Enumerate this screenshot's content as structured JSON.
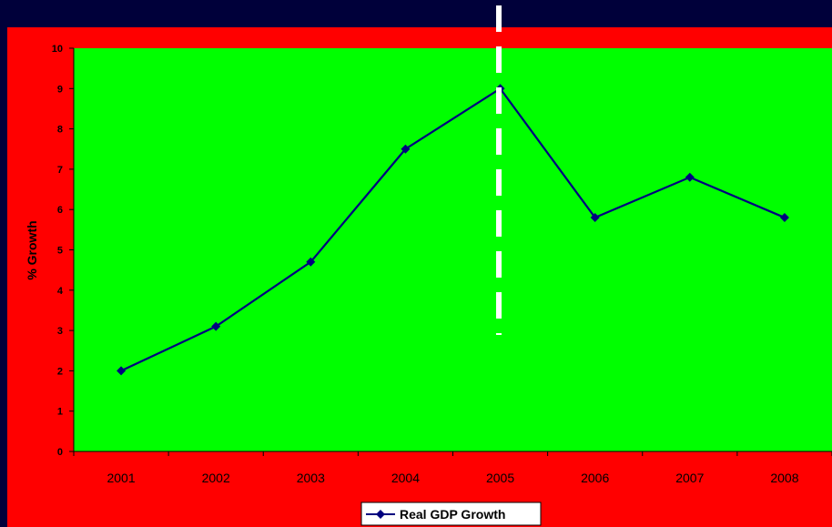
{
  "colors": {
    "page_background": "#00003a",
    "chart_area": "#ff0000",
    "plot_area": "#00ff00",
    "series_line": "#00007f",
    "marker_line": "#ffffff"
  },
  "chart_data": {
    "type": "line",
    "title": "",
    "xlabel": "",
    "ylabel": "% Growth",
    "categories": [
      "2001",
      "2002",
      "2003",
      "2004",
      "2005",
      "2006",
      "2007",
      "2008"
    ],
    "series": [
      {
        "name": "Real GDP Growth",
        "values": [
          2.0,
          3.1,
          4.7,
          7.5,
          9.0,
          5.8,
          6.8,
          5.8
        ]
      }
    ],
    "ylim": [
      0,
      10
    ],
    "yticks": [
      "0",
      "1",
      "2",
      "3",
      "4",
      "5",
      "6",
      "7",
      "8",
      "9",
      "10"
    ],
    "grid": false,
    "legend_position": "bottom-center",
    "annotation": {
      "type": "vertical-dashed-line",
      "at_category": "2005",
      "color": "#ffffff"
    }
  }
}
